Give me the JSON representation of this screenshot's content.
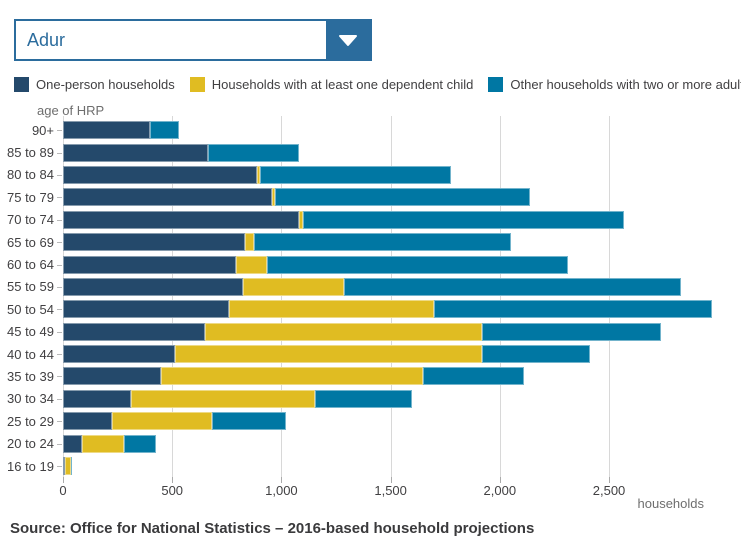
{
  "dropdown": {
    "value": "Adur"
  },
  "legend": [
    {
      "label": "One-person households",
      "color": "#24496b"
    },
    {
      "label": "Households with at least one dependent child",
      "color": "#e0bc22"
    },
    {
      "label": "Other households with two or more adults",
      "color": "#0077a3"
    }
  ],
  "chart_data": {
    "type": "bar",
    "orientation": "horizontal",
    "stacked": true,
    "ylabel": "age of HRP",
    "xlabel": "households",
    "grid": true,
    "legend_position": "top",
    "categories": [
      "90+",
      "85 to 89",
      "80 to 84",
      "75 to 79",
      "70 to 74",
      "65 to 69",
      "60 to 64",
      "55 to 59",
      "50 to 54",
      "45 to 49",
      "40 to 44",
      "35 to 39",
      "30 to 34",
      "25 to 29",
      "20 to 24",
      "16 to 19"
    ],
    "series": [
      {
        "name": "One-person households",
        "color": "#24496b",
        "values": [
          400,
          665,
          890,
          955,
          1080,
          835,
          790,
          825,
          760,
          650,
          515,
          450,
          310,
          225,
          85,
          10
        ]
      },
      {
        "name": "Households with at least one dependent child",
        "color": "#e0bc22",
        "values": [
          0,
          0,
          10,
          15,
          20,
          40,
          145,
          460,
          940,
          1270,
          1405,
          1200,
          845,
          455,
          195,
          25
        ]
      },
      {
        "name": "Other households with two or more adults",
        "color": "#0077a3",
        "values": [
          130,
          415,
          875,
          1170,
          1470,
          1175,
          1375,
          1545,
          1270,
          820,
          495,
          460,
          445,
          340,
          145,
          5
        ]
      }
    ],
    "x_ticks": [
      "0",
      "500",
      "1,000",
      "1,500",
      "2,000",
      "2,500"
    ],
    "x_tick_values": [
      0,
      500,
      1000,
      1500,
      2000,
      2500
    ],
    "xlim": [
      0,
      3095
    ]
  },
  "source": "Source: Office for National Statistics – 2016-based household projections"
}
